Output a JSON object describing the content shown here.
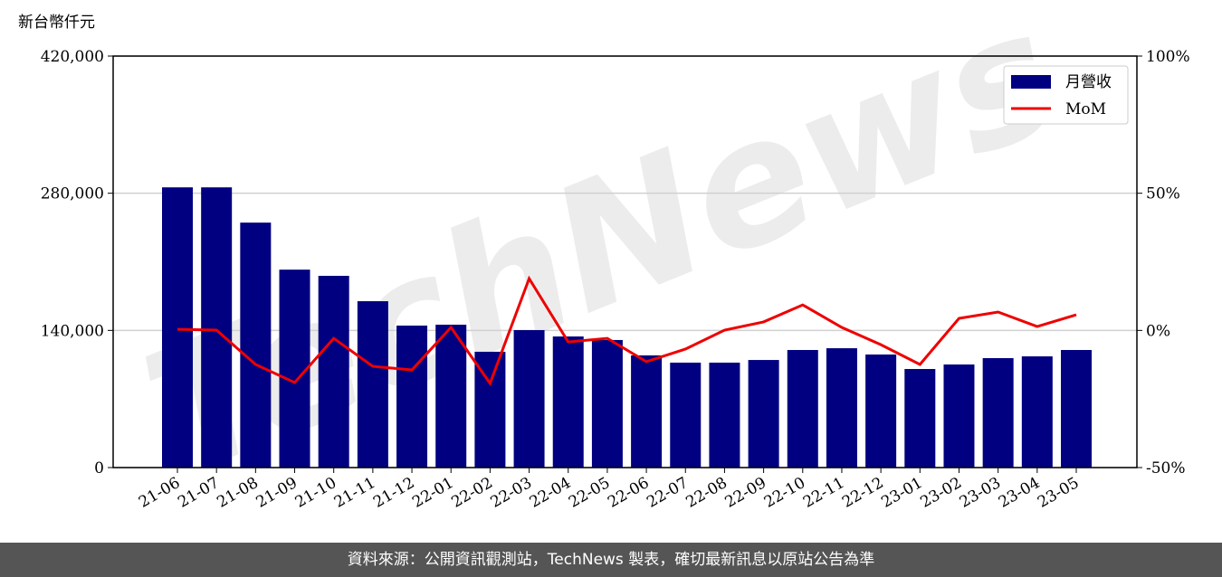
{
  "chart_data": {
    "type": "bar_line",
    "y_label": "新台幣仟元",
    "watermark": "TechNews",
    "categories": [
      "21-06",
      "21-07",
      "21-08",
      "21-09",
      "21-10",
      "21-11",
      "21-12",
      "22-01",
      "22-02",
      "22-03",
      "22-04",
      "22-05",
      "22-06",
      "22-07",
      "22-08",
      "22-09",
      "22-10",
      "22-11",
      "22-12",
      "23-01",
      "23-02",
      "23-03",
      "23-04",
      "23-05"
    ],
    "series": [
      {
        "name": "月營收",
        "type": "bar",
        "color": "#000080",
        "values": [
          286000,
          286000,
          250000,
          202000,
          195700,
          169800,
          144900,
          145800,
          118200,
          140300,
          133800,
          130200,
          114500,
          107100,
          107100,
          109800,
          120000,
          121800,
          115400,
          100600,
          105200,
          111700,
          113500,
          120000
        ]
      },
      {
        "name": "MoM",
        "type": "line",
        "color": "#ee0000",
        "axis": "y2",
        "values": [
          0.4,
          0.1,
          -12.4,
          -19,
          -2.9,
          -13.1,
          -14.4,
          1.1,
          -19.3,
          18.9,
          -4.2,
          -2.9,
          -11.4,
          -6.8,
          0.1,
          3.1,
          9.3,
          1.1,
          -5.2,
          -12.4,
          4.4,
          6.7,
          1.4,
          5.7
        ]
      }
    ],
    "ylim": [
      0,
      420000
    ],
    "yticks": [
      0,
      {
        "value": 140000,
        "label": "140,000"
      },
      {
        "value": 280000,
        "label": "280,000"
      },
      {
        "value": 420000,
        "label": "420,000"
      }
    ],
    "y2lim": [
      -50,
      100
    ],
    "y2ticks": [
      {
        "value": -50,
        "label": "-50%"
      },
      {
        "value": 0,
        "label": "0%"
      },
      {
        "value": 50,
        "label": "50%"
      },
      {
        "value": 100,
        "label": "100%"
      }
    ],
    "grid": true,
    "legend": "upper right"
  },
  "footer": "資料來源：公開資訊觀測站，TechNews 製表，確切最新訊息以原站公告為準"
}
